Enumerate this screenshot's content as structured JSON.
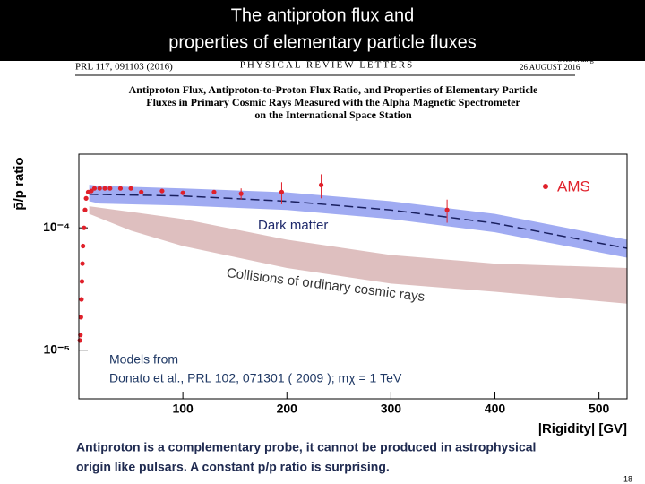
{
  "header": {
    "title_lines": [
      "The antiproton flux and",
      "properties of elementary particle fluxes"
    ]
  },
  "paper": {
    "citation": "PRL 117, 091103 (2016)",
    "journal": "PHYSICAL REVIEW LETTERS",
    "week_ending": "week ending",
    "date": "26 AUGUST 2016",
    "title_lines": [
      "Antiproton Flux, Antiproton-to-Proton Flux Ratio, and Properties of Elementary Particle",
      "Fluxes in Primary Cosmic Rays Measured with the Alpha Magnetic Spectrometer",
      "on the International Space Station"
    ]
  },
  "chart_data": {
    "type": "scatter",
    "y_label": "p̄/p ratio",
    "x_label": "|Rigidity| [GV]",
    "log_y": true,
    "xlim": [
      0,
      527
    ],
    "ylim": [
      4e-06,
      0.0004
    ],
    "xticks": [
      100,
      200,
      300,
      400,
      500
    ],
    "yticks": [
      {
        "value": 0.0001,
        "label": "10⁻⁴"
      },
      {
        "value": 1e-05,
        "label": "10⁻⁵"
      }
    ],
    "series": [
      {
        "name": "AMS",
        "color": "#e0202a",
        "x": [
          1,
          1.5,
          2,
          2.5,
          3,
          3.5,
          4,
          5,
          6,
          7,
          9,
          12,
          15,
          20,
          25,
          30,
          40,
          50,
          60,
          80,
          100,
          130,
          156,
          195,
          233,
          354
        ],
        "values": [
          1.2e-05,
          1.33e-05,
          1.86e-05,
          2.6e-05,
          3.65e-05,
          5.1e-05,
          7.1e-05,
          0.0001,
          0.00014,
          0.000174,
          0.000196,
          0.0002,
          0.00021,
          0.00021,
          0.00021,
          0.00021,
          0.00021,
          0.00021,
          0.000196,
          0.0002,
          0.000193,
          0.000196,
          0.00019,
          0.000196,
          0.000224,
          0.00014
        ],
        "errors": [
          null,
          null,
          null,
          null,
          null,
          null,
          null,
          null,
          null,
          null,
          null,
          null,
          null,
          null,
          null,
          null,
          null,
          null,
          null,
          null,
          null,
          null,
          2e-05,
          4e-05,
          5e-05,
          3e-05
        ]
      }
    ],
    "bands": [
      {
        "color": "#8f9cf0",
        "x": [
          10,
          20,
          100,
          200,
          300,
          400,
          527
        ],
        "low": [
          0.000165,
          0.000158,
          0.000152,
          0.00014,
          0.000118,
          9.2e-05,
          5.7e-05
        ],
        "high": [
          0.000225,
          0.00022,
          0.00021,
          0.000195,
          0.000165,
          0.00013,
          8e-05
        ]
      },
      {
        "color": "#d8b4b4",
        "x": [
          10,
          50,
          100,
          200,
          300,
          400,
          527
        ],
        "low": [
          0.00013,
          9.5e-05,
          7.1e-05,
          4.7e-05,
          3.5e-05,
          3e-05,
          2.4e-05
        ],
        "high": [
          0.00015,
          0.000135,
          0.000118,
          8e-05,
          6e-05,
          5.1e-05,
          4.7e-05
        ]
      }
    ],
    "lines": [
      {
        "color": "#1a2060",
        "x": [
          10,
          100,
          200,
          300,
          400,
          527
        ],
        "values": [
          0.000188,
          0.000182,
          0.000165,
          0.00014,
          0.000109,
          6.8e-05
        ]
      }
    ],
    "annotations": {
      "dark_matter": "Dark matter",
      "collisions": "Collisions of ordinary cosmic rays",
      "models_from": "Models from",
      "reference": "Donato et al., PRL 102, 071301 ( 2009 ); mχ = 1 TeV"
    }
  },
  "footer": {
    "lines": [
      "Antiproton is a complementary probe, it cannot be produced in astrophysical",
      "origin like pulsars. A constant p/p ratio is surprising."
    ],
    "page_number": "18"
  }
}
